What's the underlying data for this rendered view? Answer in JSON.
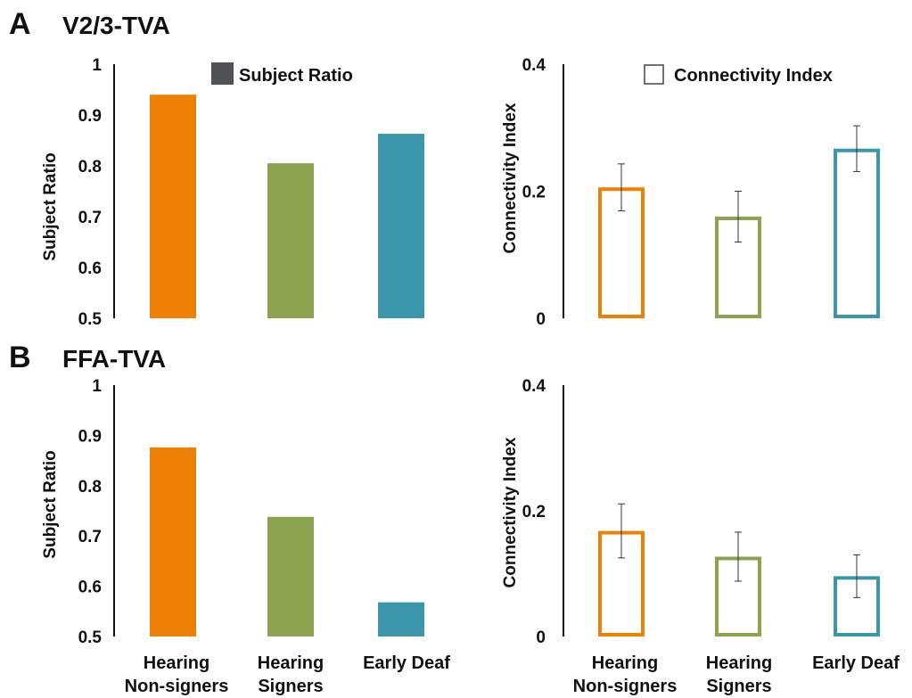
{
  "colors": {
    "hearing_nonsigners": "#EC8105",
    "hearing_signers": "#8BA24E",
    "early_deaf": "#3B96AB",
    "legend_swatch_solid": "#4F5156",
    "axis": "#111111",
    "errorbar": "#333333"
  },
  "figure": {
    "panels": [
      {
        "letter": "A",
        "title": "V2/3-TVA"
      },
      {
        "letter": "B",
        "title": "FFA-TVA"
      }
    ],
    "legends": {
      "solid": "Subject Ratio",
      "hollow": "Connectivity Index"
    },
    "categories": [
      {
        "line1": "Hearing",
        "line2": "Non-signers"
      },
      {
        "line1": "Hearing",
        "line2": "Signers"
      },
      {
        "line1": "Early Deaf",
        "line2": ""
      }
    ]
  },
  "chart_data": [
    {
      "type": "bar",
      "panel": "A",
      "title": "V2/3-TVA",
      "categories": [
        "Hearing Non-signers",
        "Hearing Signers",
        "Early Deaf"
      ],
      "values": [
        0.94,
        0.805,
        0.863
      ],
      "ylabel": "Subject Ratio",
      "ylim": [
        0.5,
        1
      ],
      "yticks": [
        "1",
        "0.9",
        "0.8",
        "0.7",
        "0.6",
        "0.5"
      ],
      "style": "filled",
      "legend": "Subject Ratio",
      "legend_position": "top"
    },
    {
      "type": "bar",
      "panel": "A",
      "title": "V2/3-TVA",
      "categories": [
        "Hearing Non-signers",
        "Hearing Signers",
        "Early Deaf"
      ],
      "values": [
        0.206,
        0.16,
        0.267
      ],
      "error": [
        0.037,
        0.04,
        0.036
      ],
      "ylabel": "Connectivity Index",
      "ylim": [
        0,
        0.4
      ],
      "yticks": [
        "0.4",
        "0.2",
        "0"
      ],
      "style": "hollow",
      "legend": "Connectivity Index",
      "legend_position": "top"
    },
    {
      "type": "bar",
      "panel": "B",
      "title": "FFA-TVA",
      "categories": [
        "Hearing Non-signers",
        "Hearing Signers",
        "Early Deaf"
      ],
      "values": [
        0.876,
        0.738,
        0.568
      ],
      "ylabel": "Subject Ratio",
      "ylim": [
        0.5,
        1
      ],
      "yticks": [
        "1",
        "0.9",
        "0.8",
        "0.7",
        "0.6",
        "0.5"
      ],
      "style": "filled"
    },
    {
      "type": "bar",
      "panel": "B",
      "title": "FFA-TVA",
      "categories": [
        "Hearing Non-signers",
        "Hearing Signers",
        "Early Deaf"
      ],
      "values": [
        0.168,
        0.127,
        0.096
      ],
      "error": [
        0.043,
        0.039,
        0.034
      ],
      "ylabel": "Connectivity Index",
      "ylim": [
        0,
        0.4
      ],
      "yticks": [
        "0.4",
        "0.2",
        "0"
      ],
      "style": "hollow"
    }
  ]
}
